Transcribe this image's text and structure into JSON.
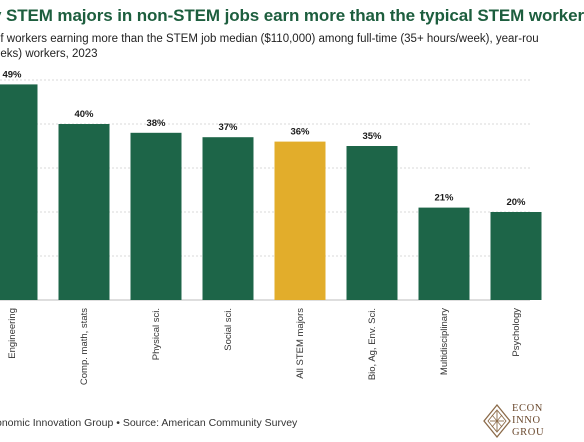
{
  "header": {
    "title": "y STEM majors in non-STEM jobs earn more than the typical STEM worker",
    "subtitle_line1": "of workers earning more than the STEM job median ($110,000) among full-time (35+ hours/week), year-rou",
    "subtitle_line2": "eeks) workers, 2023"
  },
  "footer": {
    "source": "onomic Innovation Group • Source: American Community Survey"
  },
  "logo": {
    "line1": "ECON",
    "line2": "INNO",
    "line3": "GROU"
  },
  "colors": {
    "title": "#1d5e3e",
    "bar_default": "#1d6548",
    "bar_highlight": "#e2ad2b",
    "grid": "#d9d9d9",
    "logo": "#8b6a48"
  },
  "chart_data": {
    "type": "bar",
    "categories": [
      "Engineering",
      "Comp. math, stats",
      "Physical sci.",
      "Social sci.",
      "All STEM majors",
      "Bio, Ag, Env. Sci.",
      "Multidisciplinary",
      "Psychology"
    ],
    "values": [
      49,
      40,
      38,
      37,
      36,
      35,
      21,
      20
    ],
    "data_labels": [
      "49%",
      "40%",
      "38%",
      "37%",
      "36%",
      "35%",
      "21%",
      "20%"
    ],
    "highlight_category": "All STEM majors",
    "ylim": [
      0,
      55
    ],
    "grid": true
  }
}
